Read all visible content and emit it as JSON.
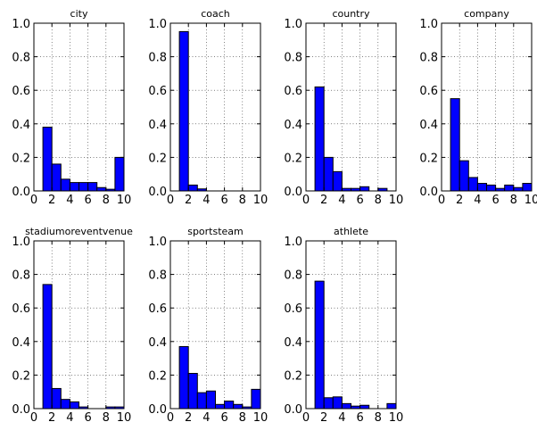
{
  "chart_data": [
    {
      "type": "bar",
      "title": "city",
      "xlim": [
        0,
        10
      ],
      "ylim": [
        0,
        1.0
      ],
      "xticks": [
        "0",
        "2",
        "4",
        "6",
        "8",
        "10"
      ],
      "yticks": [
        "0.0",
        "0.2",
        "0.4",
        "0.6",
        "0.8",
        "1.0"
      ],
      "grid": true,
      "bin_edges": [
        1,
        2,
        3,
        4,
        5,
        6,
        7,
        8,
        9,
        10
      ],
      "values": [
        0.38,
        0.16,
        0.07,
        0.05,
        0.05,
        0.05,
        0.02,
        0.01,
        0.2
      ]
    },
    {
      "type": "bar",
      "title": "coach",
      "xlim": [
        0,
        10
      ],
      "ylim": [
        0,
        1.0
      ],
      "xticks": [
        "0",
        "2",
        "4",
        "6",
        "8",
        "10"
      ],
      "yticks": [
        "0.0",
        "0.2",
        "0.4",
        "0.6",
        "0.8",
        "1.0"
      ],
      "grid": true,
      "bin_edges": [
        1,
        2,
        3,
        4,
        5,
        6,
        7,
        8,
        9,
        10
      ],
      "values": [
        0.95,
        0.035,
        0.012,
        0,
        0,
        0,
        0,
        0,
        0
      ]
    },
    {
      "type": "bar",
      "title": "country",
      "xlim": [
        0,
        10
      ],
      "ylim": [
        0,
        1.0
      ],
      "xticks": [
        "0",
        "2",
        "4",
        "6",
        "8",
        "10"
      ],
      "yticks": [
        "0.0",
        "0.2",
        "0.4",
        "0.6",
        "0.8",
        "1.0"
      ],
      "grid": true,
      "bin_edges": [
        1,
        2,
        3,
        4,
        5,
        6,
        7,
        8,
        9,
        10
      ],
      "values": [
        0.62,
        0.2,
        0.115,
        0.015,
        0.015,
        0.025,
        0,
        0.015,
        0
      ]
    },
    {
      "type": "bar",
      "title": "company",
      "xlim": [
        0,
        10
      ],
      "ylim": [
        0,
        1.0
      ],
      "xticks": [
        "0",
        "2",
        "4",
        "6",
        "8",
        "10"
      ],
      "yticks": [
        "0.0",
        "0.2",
        "0.4",
        "0.6",
        "0.8",
        "1.0"
      ],
      "grid": true,
      "bin_edges": [
        1,
        2,
        3,
        4,
        5,
        6,
        7,
        8,
        9,
        10
      ],
      "values": [
        0.55,
        0.18,
        0.08,
        0.045,
        0.035,
        0.015,
        0.035,
        0.02,
        0.045
      ]
    },
    {
      "type": "bar",
      "title": "stadiumoreventvenue",
      "xlim": [
        0,
        10
      ],
      "ylim": [
        0,
        1.0
      ],
      "xticks": [
        "0",
        "2",
        "4",
        "6",
        "8",
        "10"
      ],
      "yticks": [
        "0.0",
        "0.2",
        "0.4",
        "0.6",
        "0.8",
        "1.0"
      ],
      "grid": true,
      "bin_edges": [
        1,
        2,
        3,
        4,
        5,
        6,
        7,
        8,
        9,
        10
      ],
      "values": [
        0.74,
        0.12,
        0.055,
        0.04,
        0.01,
        0,
        0,
        0.01,
        0.01
      ]
    },
    {
      "type": "bar",
      "title": "sportsteam",
      "xlim": [
        0,
        10
      ],
      "ylim": [
        0,
        1.0
      ],
      "xticks": [
        "0",
        "2",
        "4",
        "6",
        "8",
        "10"
      ],
      "yticks": [
        "0.0",
        "0.2",
        "0.4",
        "0.6",
        "0.8",
        "1.0"
      ],
      "grid": true,
      "bin_edges": [
        1,
        2,
        3,
        4,
        5,
        6,
        7,
        8,
        9,
        10
      ],
      "values": [
        0.37,
        0.21,
        0.095,
        0.105,
        0.025,
        0.045,
        0.025,
        0.01,
        0.115
      ]
    },
    {
      "type": "bar",
      "title": "athlete",
      "xlim": [
        0,
        10
      ],
      "ylim": [
        0,
        1.0
      ],
      "xticks": [
        "0",
        "2",
        "4",
        "6",
        "8",
        "10"
      ],
      "yticks": [
        "0.0",
        "0.2",
        "0.4",
        "0.6",
        "0.8",
        "1.0"
      ],
      "grid": true,
      "bin_edges": [
        1,
        2,
        3,
        4,
        5,
        6,
        7,
        8,
        9,
        10
      ],
      "values": [
        0.76,
        0.065,
        0.07,
        0.03,
        0.015,
        0.02,
        0,
        0,
        0.03
      ]
    }
  ],
  "colors": {
    "bar_fill": "#0000ff",
    "bar_edge": "#000000",
    "frame": "#000000"
  }
}
